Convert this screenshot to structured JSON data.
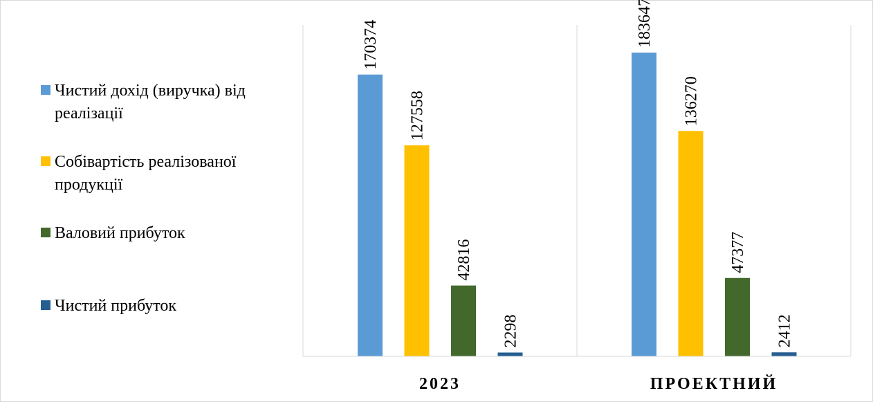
{
  "chart_data": {
    "type": "bar",
    "categories": [
      "2023",
      "ПРОЕКТНИЙ"
    ],
    "series": [
      {
        "name": "Чистий дохід (виручка) від реалізації",
        "legend_lines": [
          "Чистий дохід (виручка) від",
          "реалізації"
        ],
        "color": "#5b9bd5",
        "values": [
          170374,
          183647
        ]
      },
      {
        "name": "Собівартість реалізованої продукції",
        "legend_lines": [
          "Собівартість реалізованої",
          "продукції"
        ],
        "color": "#ffc000",
        "values": [
          127558,
          136270
        ]
      },
      {
        "name": "Валовий прибуток",
        "legend_lines": [
          "Валовий прибуток"
        ],
        "color": "#43682b",
        "values": [
          42816,
          47377
        ]
      },
      {
        "name": "Чистий прибуток",
        "legend_lines": [
          "Чистий прибуток"
        ],
        "color": "#255e91",
        "values": [
          2298,
          2412
        ]
      }
    ],
    "ylim": [
      0,
      184000
    ],
    "legend_position": "left",
    "grid": false,
    "title": "",
    "xlabel": "",
    "ylabel": ""
  }
}
